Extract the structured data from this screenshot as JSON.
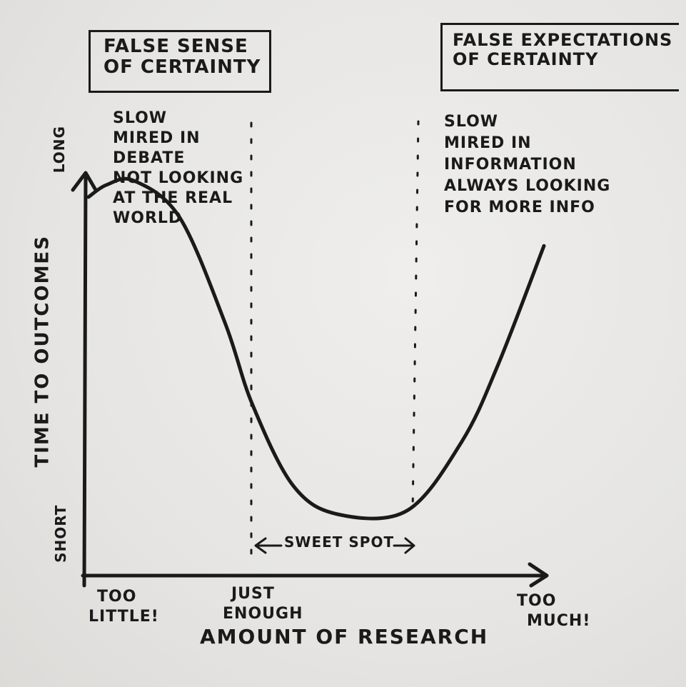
{
  "zones": {
    "left": {
      "box_label": [
        "FALSE SENSE",
        "OF CERTAINTY"
      ],
      "notes": [
        "SLOW",
        "MIRED IN",
        "DEBATE",
        "NOT LOOKING",
        "AT THE REAL",
        "WORLD"
      ]
    },
    "right": {
      "box_label": [
        "FALSE EXPECTATIONS",
        "OF CERTAINTY"
      ],
      "notes": [
        "SLOW",
        "MIRED IN",
        "INFORMATION",
        "ALWAYS LOOKING",
        "FOR MORE INFO"
      ]
    },
    "sweet_spot": "SWEET SPOT"
  },
  "axes": {
    "y_label": "TIME TO OUTCOMES",
    "y_top": "LONG",
    "y_bottom": "SHORT",
    "x_label": "AMOUNT OF RESEARCH",
    "x_ticks": [
      [
        "TOO",
        "LITTLE!"
      ],
      [
        "JUST",
        "ENOUGH"
      ],
      [
        "TOO",
        "MUCH!"
      ]
    ]
  },
  "chart_data": {
    "type": "line",
    "x": [
      0,
      0.04,
      0.1,
      0.2,
      0.3,
      0.36,
      0.45,
      0.55,
      0.7,
      0.82,
      0.9,
      1.0
    ],
    "values": [
      0.93,
      0.96,
      0.97,
      0.88,
      0.62,
      0.42,
      0.22,
      0.15,
      0.16,
      0.33,
      0.52,
      0.81
    ],
    "xlabel": "AMOUNT OF RESEARCH",
    "ylabel": "TIME TO OUTCOMES",
    "line_color": "#1a1a1a"
  }
}
